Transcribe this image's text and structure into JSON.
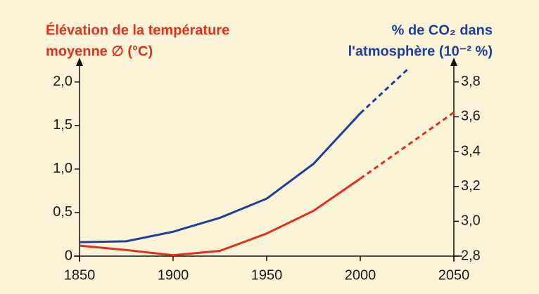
{
  "chart_data": {
    "type": "line",
    "y_label": [
      "Élévation de la température",
      "moyenne ∅ (°C)"
    ],
    "y2_label": [
      "% de CO₂ dans",
      "l'atmosphère (10⁻² %)"
    ],
    "x": [
      1850,
      1875,
      1900,
      1925,
      1950,
      1975,
      2000,
      2025,
      2050
    ],
    "xlim": [
      1850,
      2050
    ],
    "xticks": [
      1850,
      1900,
      1950,
      2000,
      2050
    ],
    "ylim": [
      0,
      2.2
    ],
    "yticks": [
      0,
      {
        "value": 0.5,
        "label": "0,5"
      },
      {
        "value": 1.0,
        "label": "1,0"
      },
      {
        "value": 1.5,
        "label": "1,5"
      },
      {
        "value": 2.0,
        "label": "2,0"
      }
    ],
    "y2lim": [
      2.8,
      3.9
    ],
    "y2ticks": [
      {
        "value": 2.8,
        "label": "2,8"
      },
      {
        "value": 3.0,
        "label": "3,0"
      },
      {
        "value": 3.2,
        "label": "3,2"
      },
      {
        "value": 3.4,
        "label": "3,4"
      },
      {
        "value": 3.6,
        "label": "3,6"
      },
      {
        "value": 3.8,
        "label": "3,8"
      }
    ],
    "series": [
      {
        "color": "#e0301e",
        "style": "solid",
        "values": [
          0.12,
          0.07,
          0.01,
          0.06,
          0.26,
          0.52,
          0.89,
          null,
          null
        ]
      },
      {
        "color": "#e0301e",
        "style": "dashed",
        "values": [
          null,
          null,
          null,
          null,
          null,
          null,
          0.89,
          1.27,
          1.65
        ]
      },
      {
        "color": "#1f3f9e",
        "style": "solid",
        "axis": "y2",
        "values": [
          2.88,
          2.885,
          2.94,
          3.02,
          3.13,
          3.33,
          3.62,
          null,
          null
        ]
      },
      {
        "color": "#1f3f9e",
        "style": "dashed",
        "axis": "y2",
        "values": [
          null,
          null,
          null,
          null,
          null,
          null,
          3.62,
          3.87,
          null
        ]
      }
    ]
  }
}
